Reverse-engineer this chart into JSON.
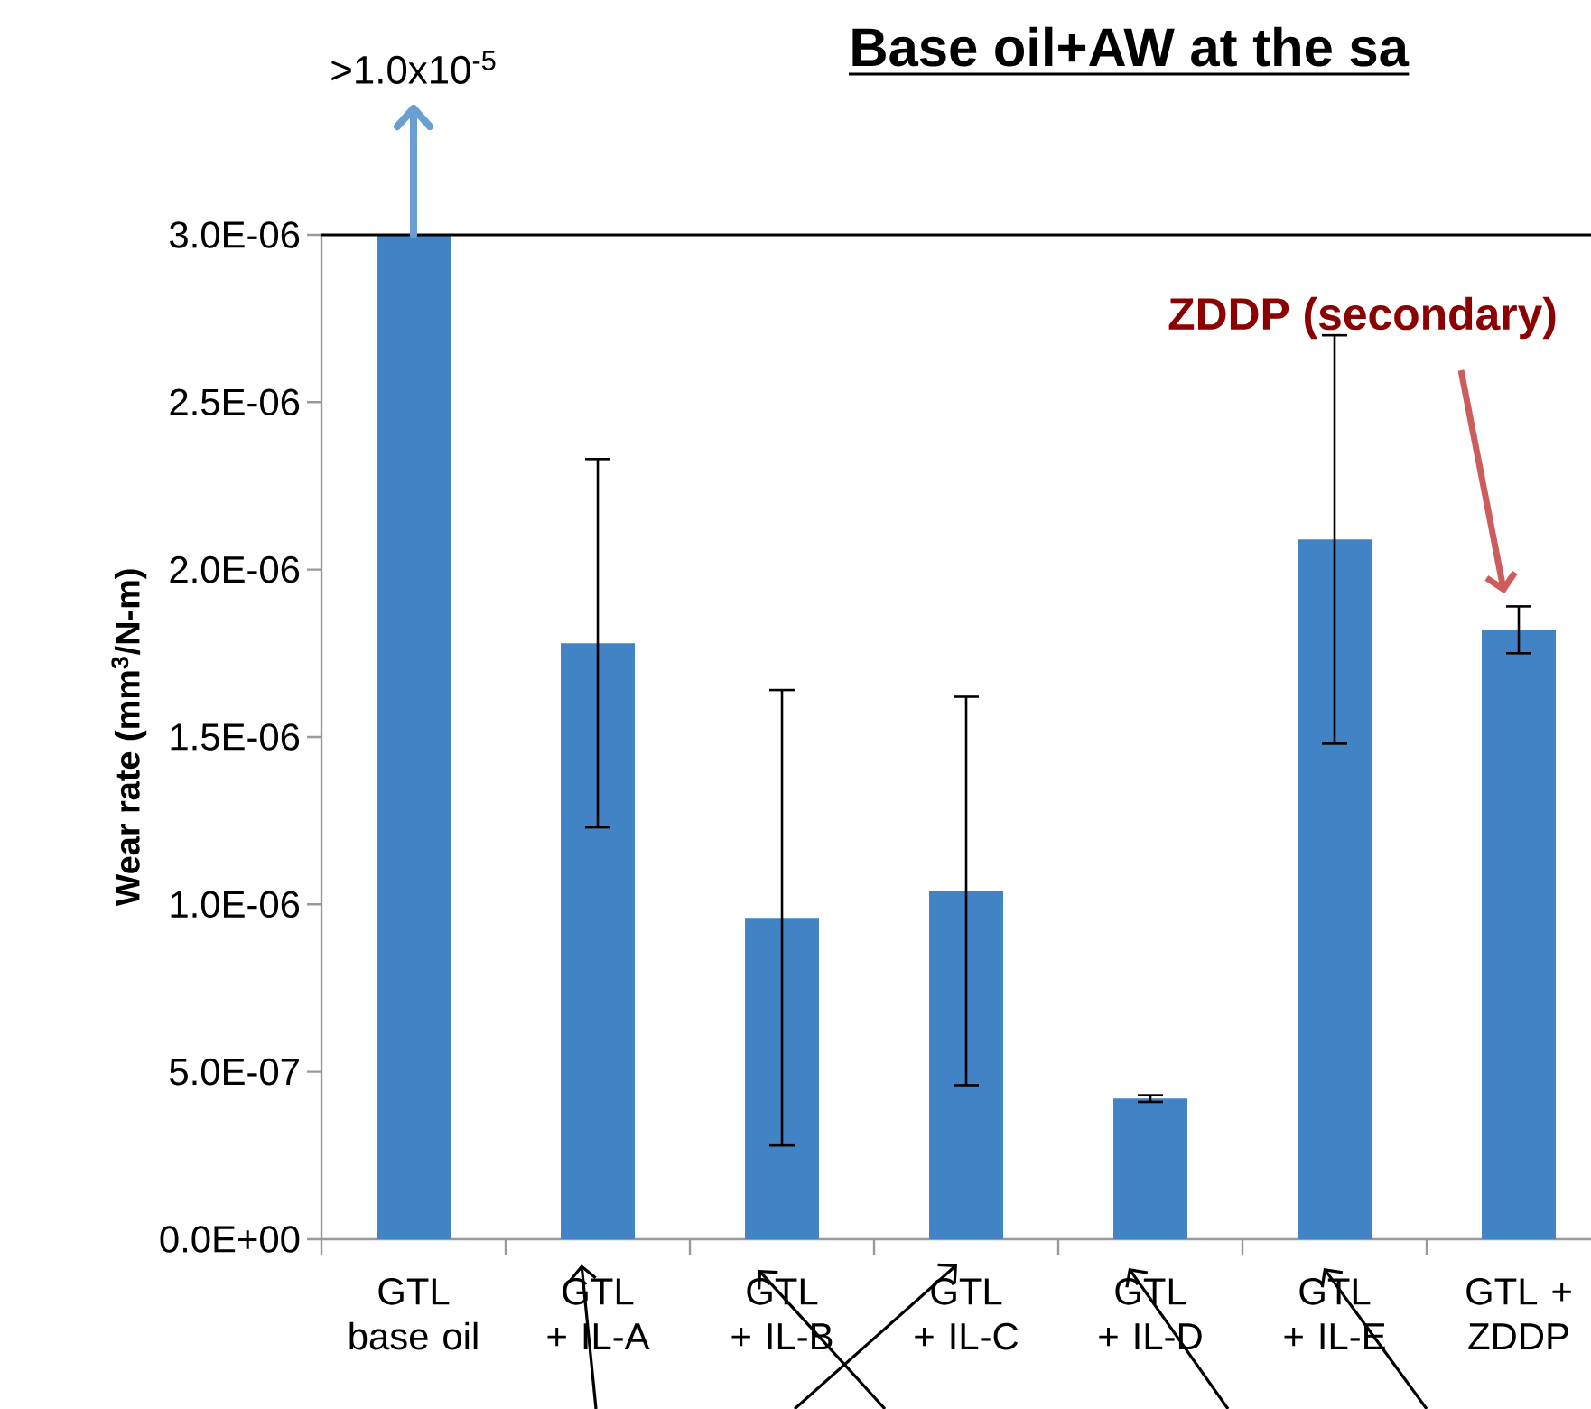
{
  "chart_data": {
    "type": "bar",
    "title": "Base oil+AW at the sa",
    "ylabel": "Wear rate (mm$^{3}$/N-m)",
    "categories": [
      "GTL base oil",
      "GTL + IL-A",
      "GTL + IL-B",
      "GTL + IL-C",
      "GTL + IL-D",
      "GTL + IL-E",
      "GTL + ZDDP"
    ],
    "values": [
      3e-06,
      1.78e-06,
      9.6e-07,
      1.04e-06,
      4.2e-07,
      2.09e-06,
      1.82e-06
    ],
    "errors": [
      null,
      5.5e-07,
      6.8e-07,
      5.8e-07,
      1e-08,
      6.1e-07,
      7e-08
    ],
    "color": "#4183c4",
    "ylim": [
      0,
      3e-06
    ],
    "yticks": [
      {
        "value": 0,
        "label": "0.0E+00"
      },
      {
        "value": 5e-07,
        "label": "5.0E-07"
      },
      {
        "value": 1e-06,
        "label": "1.0E-06"
      },
      {
        "value": 1.5e-06,
        "label": "1.5E-06"
      },
      {
        "value": 2e-06,
        "label": "2.0E-06"
      },
      {
        "value": 2.5e-06,
        "label": "2.5E-06"
      },
      {
        "value": 3e-06,
        "label": "3.0E-06"
      }
    ],
    "grid": false,
    "annotations": [
      ">1.0x10$^{-5}$",
      "ZDDP (secondary)"
    ]
  }
}
